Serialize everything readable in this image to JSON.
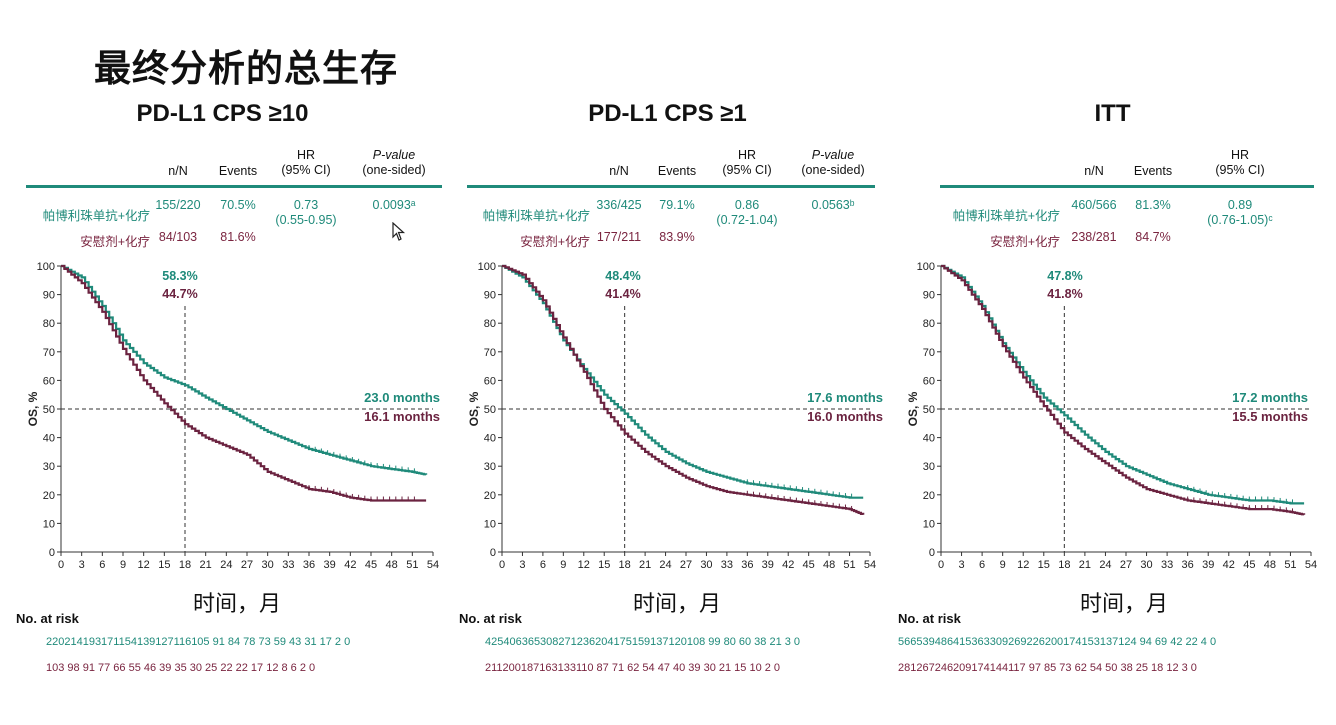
{
  "page_title": "最终分析的总生存",
  "x_axis_label": "时间，月",
  "risk_title": "No. at risk",
  "table_headers": {
    "nN": "n/N",
    "events": "Events",
    "hr_line1": "HR",
    "hr_line2": "(95% CI)",
    "p_line1": "P-value",
    "p_line2": "(one-sided)"
  },
  "colors": {
    "pembro": "#1f8a7a",
    "placebo": "#6b2340"
  },
  "x_ticks": [
    "0",
    "3",
    "6",
    "9",
    "12",
    "15",
    "18",
    "21",
    "24",
    "27",
    "30",
    "33",
    "36",
    "39",
    "42",
    "45",
    "48",
    "51",
    "54"
  ],
  "y_ticks": [
    "0",
    "10",
    "20",
    "30",
    "40",
    "50",
    "60",
    "70",
    "80",
    "90",
    "100"
  ],
  "y_label": "OS, %",
  "panels": [
    {
      "title": "PD-L1 CPS ≥10",
      "arm1_label": "帕博利珠单抗+化疗",
      "arm1_nN": "155/220",
      "arm1_events": "70.5%",
      "arm2_label": "安慰剂+化疗",
      "arm2_nN": "84/103",
      "arm2_events": "81.6%",
      "hr": "0.73",
      "hr_ci": "(0.55-0.95)",
      "p_value": "0.0093ᵃ",
      "pct18_arm1": "58.3%",
      "pct18_arm2": "44.7%",
      "median_arm1": "23.0 months",
      "median_arm2": "16.1 months",
      "risk_arm1": "220214193171154139127116105 91 84 78 73 59 43 31 17 2 0",
      "risk_arm2": "103 98 91 77 66 55 46 39 35 30 25 22 22 17 12 8 6 2 0"
    },
    {
      "title": "PD-L1 CPS ≥1",
      "arm1_label": "帕博利珠单抗+化疗",
      "arm1_nN": "336/425",
      "arm1_events": "79.1%",
      "arm2_label": "安慰剂+化疗",
      "arm2_nN": "177/211",
      "arm2_events": "83.9%",
      "hr": "0.86",
      "hr_ci": "(0.72-1.04)",
      "p_value": "0.0563ᵇ",
      "pct18_arm1": "48.4%",
      "pct18_arm2": "41.4%",
      "median_arm1": "17.6 months",
      "median_arm2": "16.0 months",
      "risk_arm1": "425406365308271236204175159137120108 99 80 60 38 21 3 0",
      "risk_arm2": "211200187163133110 87 71 62 54 47 40 39 30 21 15 10 2 0"
    },
    {
      "title": "ITT",
      "arm1_label": "帕博利珠单抗+化疗",
      "arm1_nN": "460/566",
      "arm1_events": "81.3%",
      "arm2_label": "安慰剂+化疗",
      "arm2_nN": "238/281",
      "arm2_events": "84.7%",
      "hr": "0.89",
      "hr_ci": "(0.76-1.05)ᶜ",
      "p_value": "",
      "pct18_arm1": "47.8%",
      "pct18_arm2": "41.8%",
      "median_arm1": "17.2 months",
      "median_arm2": "15.5 months",
      "risk_arm1": "566539486415363309269226200174153137124 94 69 42 22 4 0",
      "risk_arm2": "281267246209174144117 97 85 73 62 54 50 38 25 18 12 3 0"
    }
  ],
  "chart_data": [
    {
      "type": "line",
      "title": "PD-L1 CPS ≥10",
      "xlabel": "时间，月",
      "ylabel": "OS, %",
      "xlim": [
        0,
        54
      ],
      "ylim": [
        0,
        100
      ],
      "series": [
        {
          "name": "帕博利珠单抗+化疗",
          "x": [
            0,
            3,
            6,
            9,
            12,
            15,
            18,
            21,
            24,
            27,
            30,
            33,
            36,
            39,
            42,
            45,
            48,
            51,
            53
          ],
          "y": [
            100,
            96,
            86,
            74,
            66,
            61,
            58.3,
            54,
            50,
            46,
            42,
            39,
            36,
            34,
            32,
            30,
            29,
            28,
            27
          ]
        },
        {
          "name": "安慰剂+化疗",
          "x": [
            0,
            3,
            6,
            9,
            12,
            15,
            18,
            21,
            24,
            27,
            30,
            33,
            36,
            39,
            42,
            45,
            48,
            51,
            53
          ],
          "y": [
            100,
            94,
            84,
            71,
            60,
            52,
            44.7,
            40,
            37,
            34,
            28,
            25,
            22,
            21,
            19,
            18,
            18,
            18,
            18
          ]
        }
      ]
    },
    {
      "type": "line",
      "title": "PD-L1 CPS ≥1",
      "xlabel": "时间，月",
      "ylabel": "OS, %",
      "xlim": [
        0,
        54
      ],
      "ylim": [
        0,
        100
      ],
      "series": [
        {
          "name": "帕博利珠单抗+化疗",
          "x": [
            0,
            3,
            6,
            9,
            12,
            15,
            18,
            21,
            24,
            27,
            30,
            33,
            36,
            39,
            42,
            45,
            48,
            51,
            53
          ],
          "y": [
            100,
            96,
            87,
            74,
            64,
            55,
            48.4,
            41,
            35,
            31,
            28,
            26,
            24,
            23,
            22,
            21,
            20,
            19,
            19
          ]
        },
        {
          "name": "安慰剂+化疗",
          "x": [
            0,
            3,
            6,
            9,
            12,
            15,
            18,
            21,
            24,
            27,
            30,
            33,
            36,
            39,
            42,
            45,
            48,
            51,
            53
          ],
          "y": [
            100,
            97,
            88,
            75,
            63,
            50,
            41.4,
            35,
            30,
            26,
            23,
            21,
            20,
            19,
            18,
            17,
            16,
            15,
            13
          ]
        }
      ]
    },
    {
      "type": "line",
      "title": "ITT",
      "xlabel": "时间，月",
      "ylabel": "OS, %",
      "xlim": [
        0,
        54
      ],
      "ylim": [
        0,
        100
      ],
      "series": [
        {
          "name": "帕博利珠单抗+化疗",
          "x": [
            0,
            3,
            6,
            9,
            12,
            15,
            18,
            21,
            24,
            27,
            30,
            33,
            36,
            39,
            42,
            45,
            48,
            51,
            53
          ],
          "y": [
            100,
            96,
            86,
            73,
            63,
            54,
            47.8,
            41,
            35,
            30,
            27,
            24,
            22,
            20,
            19,
            18,
            18,
            17,
            17
          ]
        },
        {
          "name": "安慰剂+化疗",
          "x": [
            0,
            3,
            6,
            9,
            12,
            15,
            18,
            21,
            24,
            27,
            30,
            33,
            36,
            39,
            42,
            45,
            48,
            51,
            53
          ],
          "y": [
            100,
            95,
            85,
            72,
            61,
            51,
            41.8,
            36,
            31,
            26,
            22,
            20,
            18,
            17,
            16,
            15,
            15,
            14,
            13
          ]
        }
      ]
    }
  ]
}
